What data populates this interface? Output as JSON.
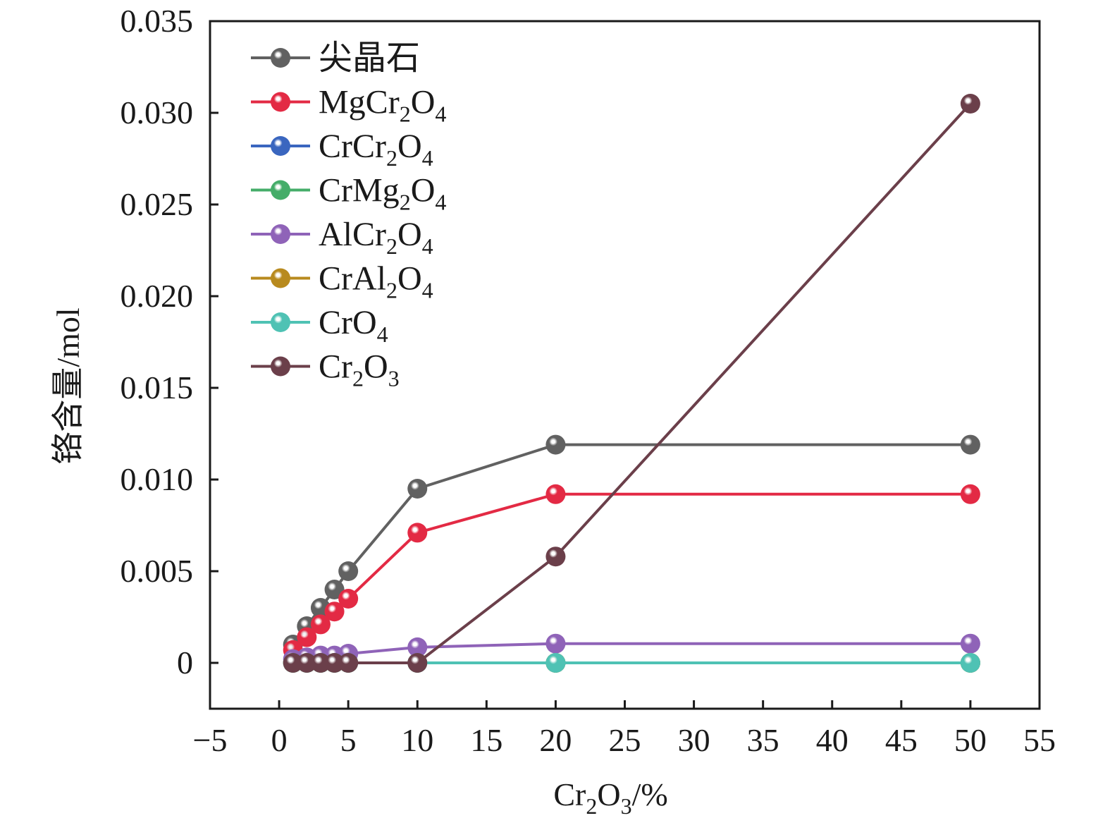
{
  "chart_data": {
    "type": "line",
    "title": "",
    "xlabel": "Cr₂O₃/%",
    "xlabel_parts": [
      [
        "Cr",
        false
      ],
      [
        "2",
        true
      ],
      [
        "O",
        false
      ],
      [
        "3",
        true
      ],
      [
        "/%",
        false
      ]
    ],
    "ylabel": "铬含量/mol",
    "xlim": [
      -5,
      55
    ],
    "ylim": [
      -0.0025,
      0.035
    ],
    "xticks": [
      -5,
      0,
      5,
      10,
      15,
      20,
      25,
      30,
      35,
      40,
      45,
      50,
      55
    ],
    "xtick_labels": [
      "−5",
      "0",
      "5",
      "10",
      "15",
      "20",
      "25",
      "30",
      "35",
      "40",
      "45",
      "50",
      "55"
    ],
    "yticks": [
      0,
      0.005,
      0.01,
      0.015,
      0.02,
      0.025,
      0.03,
      0.035
    ],
    "ytick_labels": [
      "0",
      "0.005",
      "0.010",
      "0.015",
      "0.020",
      "0.025",
      "0.030",
      "0.035"
    ],
    "grid": false,
    "legend_position": "top-left",
    "x": [
      1,
      2,
      3,
      4,
      5,
      10,
      20,
      50
    ],
    "series": [
      {
        "name": "尖晶石",
        "label_parts": [
          [
            "尖晶石",
            false
          ]
        ],
        "color": "#616161",
        "values": [
          0.001,
          0.002,
          0.003,
          0.004,
          0.005,
          0.0095,
          0.0119,
          0.0119
        ]
      },
      {
        "name": "MgCr2O4",
        "label_parts": [
          [
            "MgCr",
            false
          ],
          [
            "2",
            true
          ],
          [
            "O",
            false
          ],
          [
            "4",
            true
          ]
        ],
        "color": "#e32a44",
        "values": [
          0.0007,
          0.0014,
          0.0021,
          0.0028,
          0.0035,
          0.0071,
          0.0092,
          0.0092
        ]
      },
      {
        "name": "CrCr2O4",
        "label_parts": [
          [
            "CrCr",
            false
          ],
          [
            "2",
            true
          ],
          [
            "O",
            false
          ],
          [
            "4",
            true
          ]
        ],
        "color": "#3a66bf",
        "values": [
          0,
          0,
          0,
          0,
          0,
          0,
          0,
          0
        ]
      },
      {
        "name": "CrMg2O4",
        "label_parts": [
          [
            "CrMg",
            false
          ],
          [
            "2",
            true
          ],
          [
            "O",
            false
          ],
          [
            "4",
            true
          ]
        ],
        "color": "#45ad69",
        "values": [
          0,
          0,
          0,
          0,
          0,
          0,
          0,
          0
        ]
      },
      {
        "name": "AlCr2O4",
        "label_parts": [
          [
            "AlCr",
            false
          ],
          [
            "2",
            true
          ],
          [
            "O",
            false
          ],
          [
            "4",
            true
          ]
        ],
        "color": "#8f63b8",
        "values": [
          0.0002,
          0.0003,
          0.0004,
          0.0004,
          0.0005,
          0.00085,
          0.00105,
          0.00105
        ]
      },
      {
        "name": "CrAl2O4",
        "label_parts": [
          [
            "CrAl",
            false
          ],
          [
            "2",
            true
          ],
          [
            "O",
            false
          ],
          [
            "4",
            true
          ]
        ],
        "color": "#b88a1e",
        "values": [
          0,
          0,
          0,
          0,
          0,
          0,
          0,
          0
        ]
      },
      {
        "name": "CrO4",
        "label_parts": [
          [
            "CrO",
            false
          ],
          [
            "4",
            true
          ]
        ],
        "color": "#4fc2b4",
        "values": [
          0,
          0,
          0,
          0,
          0,
          0,
          0,
          0
        ]
      },
      {
        "name": "Cr2O3",
        "label_parts": [
          [
            "Cr",
            false
          ],
          [
            "2",
            true
          ],
          [
            "O",
            false
          ],
          [
            "3",
            true
          ]
        ],
        "color": "#6b3f4a",
        "values": [
          0,
          0,
          0,
          0,
          0,
          0,
          0.0058,
          0.0305
        ]
      }
    ]
  }
}
